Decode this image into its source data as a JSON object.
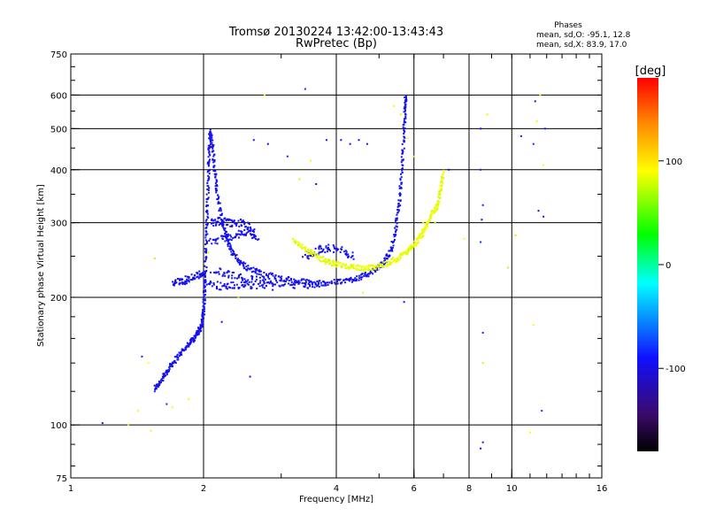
{
  "chart_data": {
    "type": "scatter",
    "title": "Tromsø 20130224 13:42:00-13:43:43",
    "subtitle": "RwPretec (Bp)",
    "xlabel": "Frequency [MHz]",
    "ylabel": "Stationary phase Virtual Height [km]",
    "x_scale": "log",
    "y_scale": "log",
    "xlim": [
      1,
      16
    ],
    "ylim": [
      75,
      750
    ],
    "x_ticks": [
      1,
      2,
      4,
      6,
      8,
      10,
      16
    ],
    "y_ticks": [
      75,
      100,
      200,
      300,
      400,
      500,
      600,
      750
    ],
    "x_grid": [
      2,
      4,
      6,
      8,
      10
    ],
    "y_grid": [
      100,
      200,
      300,
      400,
      500,
      600
    ],
    "grid": true,
    "legend_placement": "top-right",
    "stats": {
      "heading": "Phases",
      "line_o": "mean, sd,O: -95.1, 12.8",
      "line_x": "mean, sd,X:  83.9, 17.0"
    },
    "colorbar": {
      "label": "[deg]",
      "ticks": [
        100,
        0,
        -100
      ],
      "range": [
        -180,
        180
      ],
      "placement": "right"
    },
    "series": [
      {
        "color_value": -95,
        "trace": [
          [
            1.55,
            122
          ],
          [
            1.6,
            127
          ],
          [
            1.65,
            133
          ],
          [
            1.7,
            140
          ],
          [
            1.78,
            148
          ],
          [
            1.85,
            155
          ],
          [
            1.9,
            160
          ],
          [
            1.95,
            166
          ],
          [
            1.98,
            172
          ],
          [
            2.0,
            185
          ],
          [
            2.01,
            205
          ],
          [
            2.02,
            230
          ],
          [
            2.03,
            270
          ],
          [
            2.04,
            320
          ],
          [
            2.05,
            380
          ],
          [
            2.06,
            440
          ],
          [
            2.07,
            490
          ],
          [
            2.1,
            450
          ],
          [
            2.12,
            400
          ],
          [
            2.15,
            350
          ],
          [
            2.2,
            305
          ],
          [
            2.25,
            280
          ],
          [
            2.3,
            260
          ],
          [
            2.4,
            245
          ],
          [
            2.5,
            235
          ],
          [
            2.7,
            228
          ],
          [
            3.0,
            222
          ],
          [
            3.3,
            218
          ],
          [
            3.6,
            216
          ],
          [
            4.0,
            217
          ],
          [
            4.3,
            220
          ],
          [
            4.6,
            224
          ],
          [
            4.9,
            232
          ],
          [
            5.1,
            240
          ],
          [
            5.3,
            255
          ],
          [
            5.45,
            285
          ],
          [
            5.55,
            330
          ],
          [
            5.62,
            390
          ],
          [
            5.68,
            460
          ],
          [
            5.72,
            540
          ],
          [
            5.75,
            600
          ]
        ],
        "bands": [
          [
            [
              2.08,
              300
            ],
            [
              2.2,
              303
            ],
            [
              2.3,
              298
            ],
            [
              2.45,
              300
            ],
            [
              2.6,
              290
            ]
          ],
          [
            [
              2.08,
              272
            ],
            [
              2.25,
              275
            ],
            [
              2.4,
              282
            ],
            [
              2.55,
              285
            ],
            [
              2.65,
              275
            ]
          ],
          [
            [
              2.1,
              232
            ],
            [
              2.3,
              226
            ],
            [
              2.5,
              222
            ],
            [
              2.8,
              218
            ],
            [
              3.1,
              214
            ],
            [
              3.4,
              214
            ],
            [
              3.8,
              216
            ]
          ],
          [
            [
              2.05,
              215
            ],
            [
              2.2,
              212
            ],
            [
              2.4,
              213
            ],
            [
              2.6,
              214
            ],
            [
              2.9,
              212
            ]
          ],
          [
            [
              1.7,
              215
            ],
            [
              1.78,
              218
            ],
            [
              1.85,
              222
            ],
            [
              1.95,
              225
            ],
            [
              2.0,
              228
            ]
          ],
          [
            [
              3.4,
              250
            ],
            [
              3.6,
              257
            ],
            [
              3.8,
              262
            ],
            [
              4.1,
              258
            ],
            [
              4.4,
              250
            ]
          ]
        ],
        "isolated": [
          [
            1.18,
            101
          ],
          [
            1.45,
            145
          ],
          [
            1.55,
            120
          ],
          [
            1.65,
            112
          ],
          [
            2.2,
            175
          ],
          [
            2.55,
            130
          ],
          [
            2.6,
            470
          ],
          [
            2.8,
            460
          ],
          [
            3.1,
            430
          ],
          [
            3.4,
            620
          ],
          [
            3.6,
            370
          ],
          [
            3.8,
            470
          ],
          [
            4.1,
            470
          ],
          [
            4.3,
            460
          ],
          [
            4.5,
            470
          ],
          [
            4.7,
            460
          ],
          [
            5.7,
            195
          ],
          [
            7.2,
            400
          ],
          [
            8.5,
            500
          ],
          [
            8.6,
            330
          ],
          [
            8.55,
            305
          ],
          [
            8.5,
            270
          ],
          [
            8.6,
            165
          ],
          [
            8.5,
            88
          ],
          [
            8.6,
            91
          ],
          [
            8.5,
            400
          ],
          [
            10.5,
            480
          ],
          [
            11.2,
            460
          ],
          [
            11.3,
            580
          ],
          [
            11.5,
            320
          ],
          [
            11.7,
            108
          ],
          [
            11.8,
            310
          ],
          [
            11.9,
            500
          ]
        ]
      },
      {
        "color_value": 84,
        "trace": [
          [
            3.2,
            275
          ],
          [
            3.4,
            260
          ],
          [
            3.6,
            250
          ],
          [
            3.8,
            243
          ],
          [
            4.0,
            240
          ],
          [
            4.3,
            236
          ],
          [
            4.6,
            234
          ],
          [
            4.9,
            236
          ],
          [
            5.2,
            240
          ],
          [
            5.5,
            247
          ],
          [
            5.8,
            256
          ],
          [
            6.0,
            265
          ],
          [
            6.2,
            278
          ],
          [
            6.4,
            295
          ],
          [
            6.6,
            315
          ],
          [
            6.8,
            330
          ],
          [
            6.9,
            360
          ],
          [
            7.0,
            395
          ]
        ],
        "isolated": [
          [
            1.35,
            100
          ],
          [
            1.42,
            108
          ],
          [
            1.5,
            140
          ],
          [
            1.52,
            97
          ],
          [
            1.55,
            247
          ],
          [
            1.7,
            110
          ],
          [
            1.85,
            115
          ],
          [
            2.05,
            255
          ],
          [
            2.4,
            200
          ],
          [
            2.75,
            600
          ],
          [
            3.3,
            380
          ],
          [
            3.5,
            420
          ],
          [
            4.6,
            205
          ],
          [
            5.4,
            565
          ],
          [
            5.6,
            540
          ],
          [
            5.8,
            475
          ],
          [
            6.0,
            430
          ],
          [
            6.3,
            300
          ],
          [
            6.7,
            300
          ],
          [
            7.8,
            275
          ],
          [
            8.6,
            140
          ],
          [
            8.8,
            540
          ],
          [
            9.8,
            235
          ],
          [
            10.2,
            280
          ],
          [
            11.0,
            96
          ],
          [
            11.2,
            172
          ],
          [
            11.4,
            520
          ],
          [
            11.6,
            600
          ],
          [
            11.8,
            410
          ]
        ]
      }
    ]
  }
}
